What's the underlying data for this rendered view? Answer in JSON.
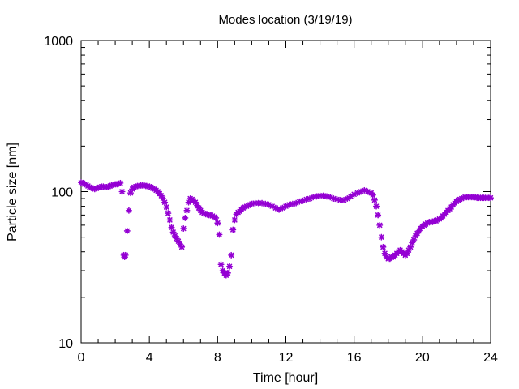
{
  "chart_data": {
    "type": "scatter",
    "title": "Modes location (3/19/19)",
    "xlabel": "Time [hour]",
    "ylabel": "Particle size [nm]",
    "xlim": [
      0,
      24
    ],
    "ylim": [
      10,
      1000
    ],
    "yscale": "log",
    "xticks": [
      0,
      4,
      8,
      12,
      16,
      20,
      24
    ],
    "xtick_labels": [
      "0",
      "4",
      "8",
      "12",
      "16",
      "20",
      "24"
    ],
    "yticks": [
      10,
      100,
      1000
    ],
    "ytick_labels": [
      "10",
      "100",
      "1000"
    ],
    "grid": false,
    "legend": "none",
    "colors": {
      "marker": "#9400d3",
      "axes": "#000000"
    },
    "series": [
      {
        "marker": "star",
        "points": [
          [
            0.0,
            115
          ],
          [
            0.1,
            114
          ],
          [
            0.2,
            112
          ],
          [
            0.3,
            111
          ],
          [
            0.4,
            109
          ],
          [
            0.5,
            107
          ],
          [
            0.6,
            106
          ],
          [
            0.7,
            105
          ],
          [
            0.8,
            104
          ],
          [
            0.9,
            105
          ],
          [
            1.0,
            106
          ],
          [
            1.1,
            107
          ],
          [
            1.2,
            108
          ],
          [
            1.3,
            108
          ],
          [
            1.4,
            107
          ],
          [
            1.5,
            107
          ],
          [
            1.6,
            108
          ],
          [
            1.7,
            109
          ],
          [
            1.8,
            110
          ],
          [
            1.9,
            111
          ],
          [
            2.0,
            112
          ],
          [
            2.1,
            112
          ],
          [
            2.2,
            113
          ],
          [
            2.3,
            114
          ],
          [
            2.4,
            100
          ],
          [
            2.5,
            38
          ],
          [
            2.55,
            37
          ],
          [
            2.6,
            38
          ],
          [
            2.7,
            55
          ],
          [
            2.8,
            75
          ],
          [
            2.9,
            98
          ],
          [
            3.0,
            104
          ],
          [
            3.1,
            107
          ],
          [
            3.2,
            108
          ],
          [
            3.3,
            109
          ],
          [
            3.4,
            109
          ],
          [
            3.5,
            110
          ],
          [
            3.6,
            110
          ],
          [
            3.7,
            110
          ],
          [
            3.8,
            109
          ],
          [
            3.9,
            109
          ],
          [
            4.0,
            108
          ],
          [
            4.1,
            107
          ],
          [
            4.2,
            105
          ],
          [
            4.3,
            104
          ],
          [
            4.4,
            102
          ],
          [
            4.5,
            100
          ],
          [
            4.6,
            97
          ],
          [
            4.7,
            94
          ],
          [
            4.8,
            90
          ],
          [
            4.9,
            85
          ],
          [
            5.0,
            79
          ],
          [
            5.1,
            72
          ],
          [
            5.2,
            65
          ],
          [
            5.3,
            58
          ],
          [
            5.4,
            54
          ],
          [
            5.5,
            51
          ],
          [
            5.6,
            49
          ],
          [
            5.7,
            47
          ],
          [
            5.8,
            45
          ],
          [
            5.9,
            43
          ],
          [
            6.0,
            57
          ],
          [
            6.1,
            67
          ],
          [
            6.2,
            75
          ],
          [
            6.3,
            85
          ],
          [
            6.4,
            90
          ],
          [
            6.5,
            89
          ],
          [
            6.6,
            87
          ],
          [
            6.7,
            85
          ],
          [
            6.8,
            81
          ],
          [
            6.9,
            78
          ],
          [
            7.0,
            75
          ],
          [
            7.1,
            73
          ],
          [
            7.2,
            72
          ],
          [
            7.3,
            71
          ],
          [
            7.4,
            71
          ],
          [
            7.5,
            70
          ],
          [
            7.6,
            70
          ],
          [
            7.7,
            69
          ],
          [
            7.8,
            68
          ],
          [
            7.9,
            67
          ],
          [
            8.0,
            62
          ],
          [
            8.1,
            52
          ],
          [
            8.2,
            33
          ],
          [
            8.3,
            30
          ],
          [
            8.4,
            29
          ],
          [
            8.5,
            28
          ],
          [
            8.6,
            29
          ],
          [
            8.7,
            32
          ],
          [
            8.8,
            38
          ],
          [
            8.9,
            56
          ],
          [
            9.0,
            65
          ],
          [
            9.1,
            71
          ],
          [
            9.2,
            73
          ],
          [
            9.3,
            74
          ],
          [
            9.4,
            76
          ],
          [
            9.5,
            78
          ],
          [
            9.6,
            79
          ],
          [
            9.7,
            80
          ],
          [
            9.8,
            81
          ],
          [
            9.9,
            82
          ],
          [
            10.0,
            83
          ],
          [
            10.2,
            84
          ],
          [
            10.4,
            84
          ],
          [
            10.6,
            84
          ],
          [
            10.8,
            83
          ],
          [
            11.0,
            82
          ],
          [
            11.2,
            80
          ],
          [
            11.4,
            78
          ],
          [
            11.6,
            76
          ],
          [
            11.8,
            78
          ],
          [
            12.0,
            80
          ],
          [
            12.2,
            82
          ],
          [
            12.4,
            83
          ],
          [
            12.6,
            84
          ],
          [
            12.8,
            86
          ],
          [
            13.0,
            87
          ],
          [
            13.2,
            89
          ],
          [
            13.4,
            90
          ],
          [
            13.6,
            92
          ],
          [
            13.8,
            93
          ],
          [
            14.0,
            94
          ],
          [
            14.2,
            94
          ],
          [
            14.4,
            93
          ],
          [
            14.6,
            92
          ],
          [
            14.8,
            90
          ],
          [
            15.0,
            89
          ],
          [
            15.2,
            88
          ],
          [
            15.4,
            88
          ],
          [
            15.6,
            90
          ],
          [
            15.8,
            93
          ],
          [
            16.0,
            96
          ],
          [
            16.2,
            98
          ],
          [
            16.4,
            100
          ],
          [
            16.6,
            102
          ],
          [
            16.8,
            100
          ],
          [
            17.0,
            98
          ],
          [
            17.1,
            95
          ],
          [
            17.2,
            88
          ],
          [
            17.3,
            80
          ],
          [
            17.4,
            70
          ],
          [
            17.5,
            60
          ],
          [
            17.6,
            50
          ],
          [
            17.7,
            43
          ],
          [
            17.8,
            39
          ],
          [
            17.9,
            37
          ],
          [
            18.0,
            36
          ],
          [
            18.1,
            36
          ],
          [
            18.2,
            37
          ],
          [
            18.3,
            37
          ],
          [
            18.4,
            38
          ],
          [
            18.5,
            39
          ],
          [
            18.6,
            40
          ],
          [
            18.7,
            41
          ],
          [
            18.8,
            40
          ],
          [
            18.9,
            39
          ],
          [
            19.0,
            38
          ],
          [
            19.1,
            39
          ],
          [
            19.2,
            41
          ],
          [
            19.3,
            43
          ],
          [
            19.4,
            46
          ],
          [
            19.5,
            48
          ],
          [
            19.6,
            51
          ],
          [
            19.7,
            53
          ],
          [
            19.8,
            55
          ],
          [
            19.9,
            57
          ],
          [
            20.0,
            59
          ],
          [
            20.1,
            60
          ],
          [
            20.2,
            61
          ],
          [
            20.3,
            62
          ],
          [
            20.4,
            63
          ],
          [
            20.5,
            63
          ],
          [
            20.6,
            63
          ],
          [
            20.7,
            64
          ],
          [
            20.8,
            64
          ],
          [
            20.9,
            65
          ],
          [
            21.0,
            66
          ],
          [
            21.1,
            67
          ],
          [
            21.2,
            69
          ],
          [
            21.3,
            71
          ],
          [
            21.4,
            73
          ],
          [
            21.5,
            75
          ],
          [
            21.6,
            77
          ],
          [
            21.7,
            79
          ],
          [
            21.8,
            82
          ],
          [
            21.9,
            84
          ],
          [
            22.0,
            86
          ],
          [
            22.1,
            88
          ],
          [
            22.2,
            89
          ],
          [
            22.3,
            90
          ],
          [
            22.4,
            91
          ],
          [
            22.5,
            92
          ],
          [
            22.6,
            92
          ],
          [
            22.7,
            92
          ],
          [
            22.8,
            92
          ],
          [
            22.9,
            92
          ],
          [
            23.0,
            92
          ],
          [
            23.1,
            92
          ],
          [
            23.2,
            91
          ],
          [
            23.3,
            91
          ],
          [
            23.4,
            91
          ],
          [
            23.5,
            91
          ],
          [
            23.6,
            91
          ],
          [
            23.7,
            91
          ],
          [
            23.8,
            91
          ],
          [
            23.9,
            91
          ],
          [
            24.0,
            91
          ]
        ]
      }
    ]
  }
}
